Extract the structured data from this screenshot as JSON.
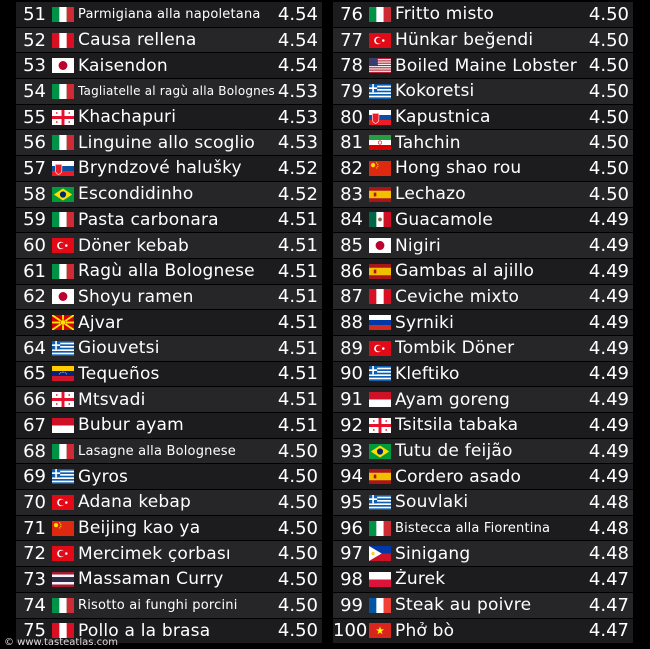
{
  "left": [
    {
      "rank": "51",
      "name": "Parmigiana alla napoletana",
      "score": "4.54",
      "flag": "italy",
      "size": "small"
    },
    {
      "rank": "52",
      "name": "Causa rellena",
      "score": "4.54",
      "flag": "peru"
    },
    {
      "rank": "53",
      "name": "Kaisendon",
      "score": "4.54",
      "flag": "japan"
    },
    {
      "rank": "54",
      "name": "Tagliatelle al ragù alla Bolognese",
      "score": "4.53",
      "flag": "italy",
      "size": "xsmall"
    },
    {
      "rank": "55",
      "name": "Khachapuri",
      "score": "4.53",
      "flag": "georgia"
    },
    {
      "rank": "56",
      "name": "Linguine allo scoglio",
      "score": "4.53",
      "flag": "italy"
    },
    {
      "rank": "57",
      "name": "Bryndzové halušky",
      "score": "4.52",
      "flag": "slovakia"
    },
    {
      "rank": "58",
      "name": "Escondidinho",
      "score": "4.52",
      "flag": "brazil"
    },
    {
      "rank": "59",
      "name": "Pasta carbonara",
      "score": "4.51",
      "flag": "italy"
    },
    {
      "rank": "60",
      "name": "Döner kebab",
      "score": "4.51",
      "flag": "turkey"
    },
    {
      "rank": "61",
      "name": "Ragù alla Bolognese",
      "score": "4.51",
      "flag": "italy"
    },
    {
      "rank": "62",
      "name": "Shoyu ramen",
      "score": "4.51",
      "flag": "japan"
    },
    {
      "rank": "63",
      "name": "Ajvar",
      "score": "4.51",
      "flag": "macedonia"
    },
    {
      "rank": "64",
      "name": "Giouvetsi",
      "score": "4.51",
      "flag": "greece"
    },
    {
      "rank": "65",
      "name": "Tequeños",
      "score": "4.51",
      "flag": "venezuela"
    },
    {
      "rank": "66",
      "name": "Mtsvadi",
      "score": "4.51",
      "flag": "georgia"
    },
    {
      "rank": "67",
      "name": "Bubur ayam",
      "score": "4.51",
      "flag": "indonesia"
    },
    {
      "rank": "68",
      "name": "Lasagne alla Bolognese",
      "score": "4.50",
      "flag": "italy",
      "size": "small"
    },
    {
      "rank": "69",
      "name": "Gyros",
      "score": "4.50",
      "flag": "greece"
    },
    {
      "rank": "70",
      "name": "Adana kebap",
      "score": "4.50",
      "flag": "turkey"
    },
    {
      "rank": "71",
      "name": "Beijing kao ya",
      "score": "4.50",
      "flag": "china"
    },
    {
      "rank": "72",
      "name": "Mercimek çorbası",
      "score": "4.50",
      "flag": "turkey"
    },
    {
      "rank": "73",
      "name": "Massaman Curry",
      "score": "4.50",
      "flag": "thailand"
    },
    {
      "rank": "74",
      "name": "Risotto ai funghi porcini",
      "score": "4.50",
      "flag": "italy",
      "size": "small"
    },
    {
      "rank": "75",
      "name": "Pollo a la brasa",
      "score": "4.50",
      "flag": "peru"
    }
  ],
  "right": [
    {
      "rank": "76",
      "name": "Fritto misto",
      "score": "4.50",
      "flag": "italy"
    },
    {
      "rank": "77",
      "name": "Hünkar beğendi",
      "score": "4.50",
      "flag": "turkey"
    },
    {
      "rank": "78",
      "name": "Boiled Maine Lobster",
      "score": "4.50",
      "flag": "usa"
    },
    {
      "rank": "79",
      "name": "Kokoretsi",
      "score": "4.50",
      "flag": "greece"
    },
    {
      "rank": "80",
      "name": "Kapustnica",
      "score": "4.50",
      "flag": "slovakia"
    },
    {
      "rank": "81",
      "name": "Tahchin",
      "score": "4.50",
      "flag": "iran"
    },
    {
      "rank": "82",
      "name": "Hong shao rou",
      "score": "4.50",
      "flag": "china"
    },
    {
      "rank": "83",
      "name": "Lechazo",
      "score": "4.50",
      "flag": "spain"
    },
    {
      "rank": "84",
      "name": "Guacamole",
      "score": "4.49",
      "flag": "mexico"
    },
    {
      "rank": "85",
      "name": "Nigiri",
      "score": "4.49",
      "flag": "japan"
    },
    {
      "rank": "86",
      "name": "Gambas al ajillo",
      "score": "4.49",
      "flag": "spain"
    },
    {
      "rank": "87",
      "name": "Ceviche mixto",
      "score": "4.49",
      "flag": "peru"
    },
    {
      "rank": "88",
      "name": "Syrniki",
      "score": "4.49",
      "flag": "russia"
    },
    {
      "rank": "89",
      "name": "Tombik Döner",
      "score": "4.49",
      "flag": "turkey"
    },
    {
      "rank": "90",
      "name": "Kleftiko",
      "score": "4.49",
      "flag": "greece"
    },
    {
      "rank": "91",
      "name": "Ayam goreng",
      "score": "4.49",
      "flag": "indonesia"
    },
    {
      "rank": "92",
      "name": "Tsitsila tabaka",
      "score": "4.49",
      "flag": "georgia"
    },
    {
      "rank": "93",
      "name": "Tutu de feijão",
      "score": "4.49",
      "flag": "brazil"
    },
    {
      "rank": "94",
      "name": "Cordero asado",
      "score": "4.49",
      "flag": "spain"
    },
    {
      "rank": "95",
      "name": "Souvlaki",
      "score": "4.48",
      "flag": "greece"
    },
    {
      "rank": "96",
      "name": "Bistecca alla Fiorentina",
      "score": "4.48",
      "flag": "italy",
      "size": "small"
    },
    {
      "rank": "97",
      "name": "Sinigang",
      "score": "4.48",
      "flag": "philippines"
    },
    {
      "rank": "98",
      "name": "Żurek",
      "score": "4.47",
      "flag": "poland"
    },
    {
      "rank": "99",
      "name": "Steak au poivre",
      "score": "4.47",
      "flag": "france"
    },
    {
      "rank": "100",
      "name": "Phở bò",
      "score": "4.47",
      "flag": "vietnam"
    }
  ],
  "watermark": "© www.tasteatlas.com"
}
